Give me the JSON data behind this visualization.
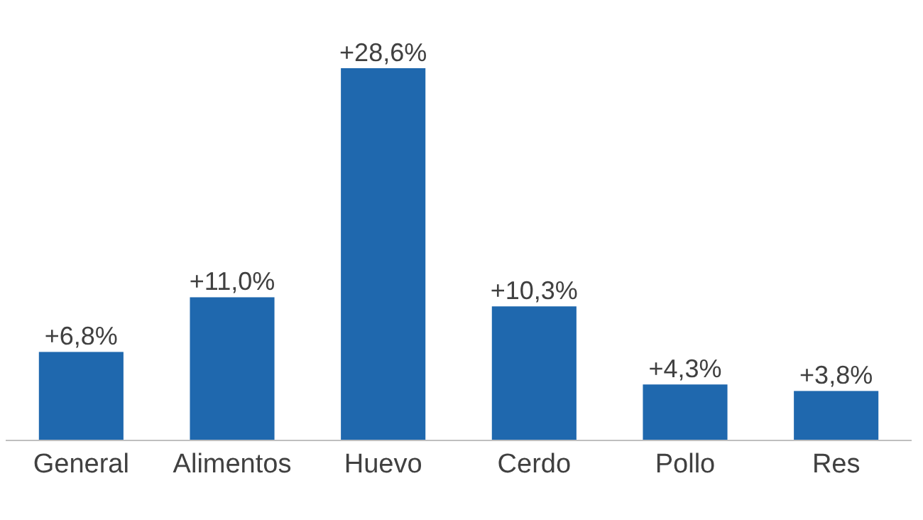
{
  "chart_data": {
    "type": "bar",
    "categories": [
      "General",
      "Alimentos",
      "Huevo",
      "Cerdo",
      "Pollo",
      "Res"
    ],
    "values": [
      6.8,
      11.0,
      28.6,
      10.3,
      4.3,
      3.8
    ],
    "value_labels": [
      "+6,8%",
      "+11,0%",
      "+28,6%",
      "+10,3%",
      "+4,3%",
      "+3,8%"
    ],
    "color": "#1f68ae"
  }
}
